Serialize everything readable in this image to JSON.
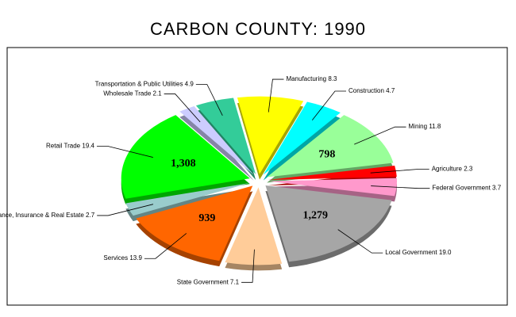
{
  "chart_data": {
    "type": "pie",
    "title": "CARBON COUNTY:  1990",
    "categories": [
      "Manufacturing",
      "Construction",
      "Mining",
      "Agriculture",
      "Federal Government",
      "Local Government",
      "State Government",
      "Services",
      "Finance, Insurance & Real Estate",
      "Retail Trade",
      "Wholesale Trade",
      "Transportation & Public Utilities"
    ],
    "values": [
      8.3,
      4.7,
      11.8,
      2.3,
      3.7,
      19.0,
      7.1,
      13.9,
      2.7,
      19.4,
      2.1,
      4.9
    ],
    "value_labels": [
      "8.3",
      "4.7",
      "11.8",
      "2.3",
      "3.7",
      "19.0",
      "7.1",
      "13.9",
      "2.7",
      "19.4",
      "2.1",
      "4.9"
    ],
    "colors": [
      "#ffff00",
      "#00ffff",
      "#99ff99",
      "#ff0000",
      "#ff99cc",
      "#a6a6a6",
      "#ffcc99",
      "#ff6600",
      "#99cccc",
      "#00ff00",
      "#ccccff",
      "#33cc99"
    ],
    "slice_values": [
      null,
      null,
      798,
      null,
      null,
      {
        "value": 1279,
        "label": "1,279"
      },
      null,
      939,
      null,
      {
        "value": 1308,
        "label": "1,308"
      },
      null,
      null
    ]
  }
}
